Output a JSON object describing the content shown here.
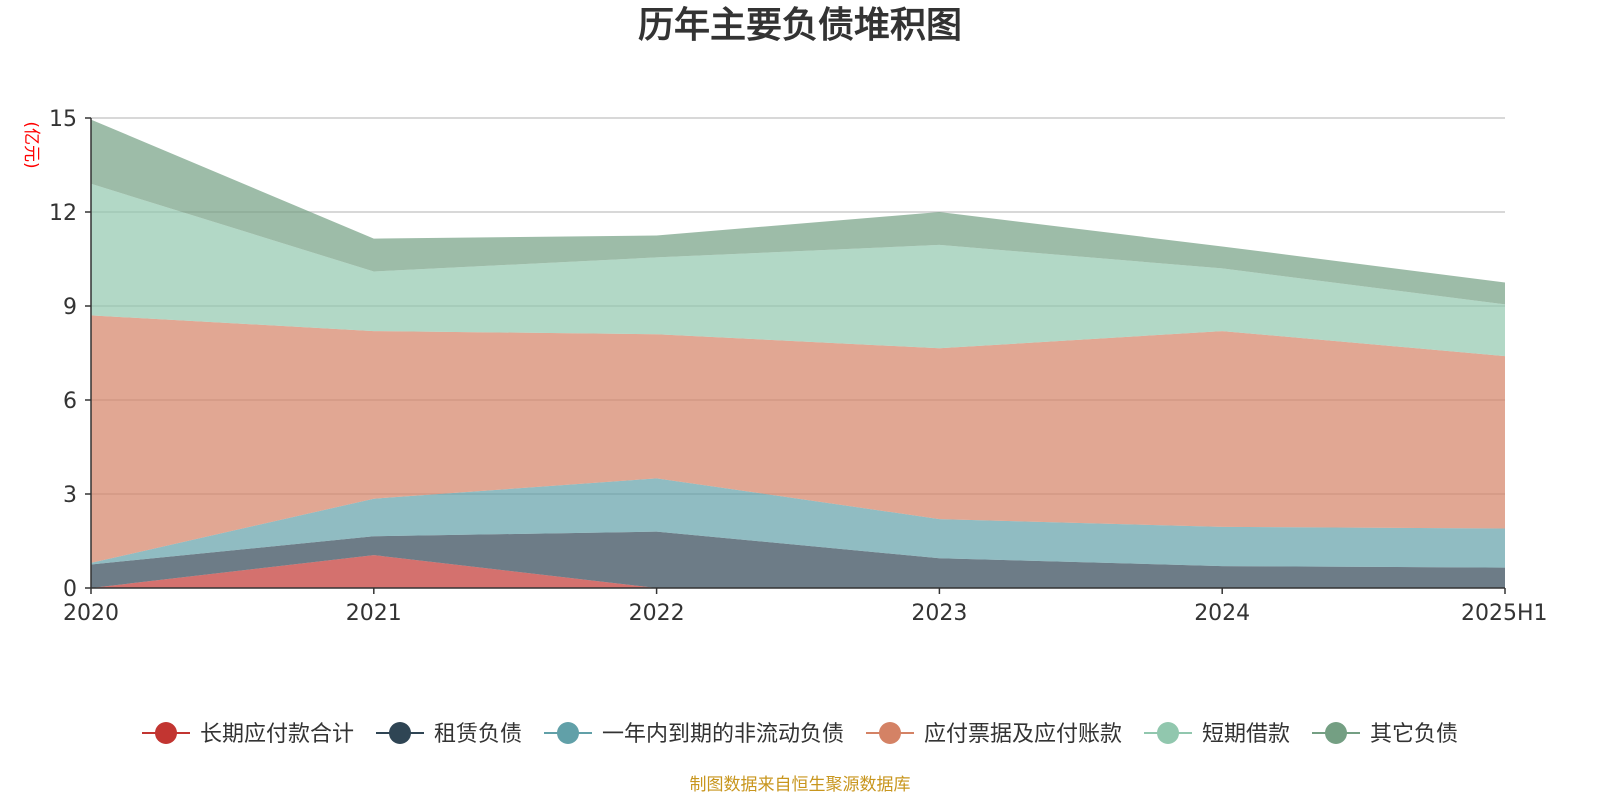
{
  "chart_data": {
    "type": "area",
    "title": "历年主要负债堆积图",
    "unit": "(亿元)",
    "categories": [
      "2020",
      "2021",
      "2022",
      "2023",
      "2024",
      "2025H1"
    ],
    "ylim": [
      0,
      15
    ],
    "yticks": [
      0,
      3,
      6,
      9,
      12,
      15
    ],
    "stacked": true,
    "grid": true,
    "legend_position": "bottom",
    "series": [
      {
        "name": "长期应付款合计",
        "color": "#c23531",
        "values": [
          0.0,
          1.05,
          0.0,
          0.0,
          0.0,
          0.0
        ]
      },
      {
        "name": "租赁负债",
        "color": "#2f4554",
        "values": [
          0.75,
          0.6,
          1.8,
          0.95,
          0.7,
          0.65
        ]
      },
      {
        "name": "一年内到期的非流动负债",
        "color": "#61a0a8",
        "values": [
          0.05,
          1.2,
          1.7,
          1.25,
          1.25,
          1.25
        ]
      },
      {
        "name": "应付票据及应付账款",
        "color": "#d48265",
        "values": [
          7.9,
          5.35,
          4.6,
          5.45,
          6.25,
          5.5
        ]
      },
      {
        "name": "短期借款",
        "color": "#91c7ae",
        "values": [
          4.2,
          1.9,
          2.45,
          3.3,
          2.0,
          1.65
        ]
      },
      {
        "name": "其它负债",
        "color": "#749f83",
        "values": [
          2.05,
          1.05,
          0.7,
          1.05,
          0.7,
          0.7
        ]
      }
    ]
  },
  "footer": {
    "source": "制图数据来自恒生聚源数据库"
  }
}
